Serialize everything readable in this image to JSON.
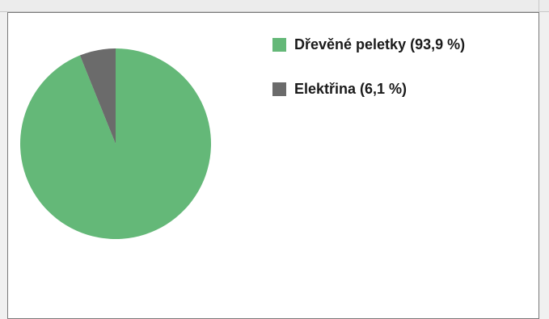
{
  "chart_data": {
    "type": "pie",
    "title": "",
    "legend_position": "right",
    "slices": [
      {
        "label": "Dřevěné peletky (93,9 %)",
        "value": 93.9,
        "color": "#64b878"
      },
      {
        "label": "Elektřina (6,1 %)",
        "value": 6.1,
        "color": "#6b6b6b"
      }
    ]
  }
}
